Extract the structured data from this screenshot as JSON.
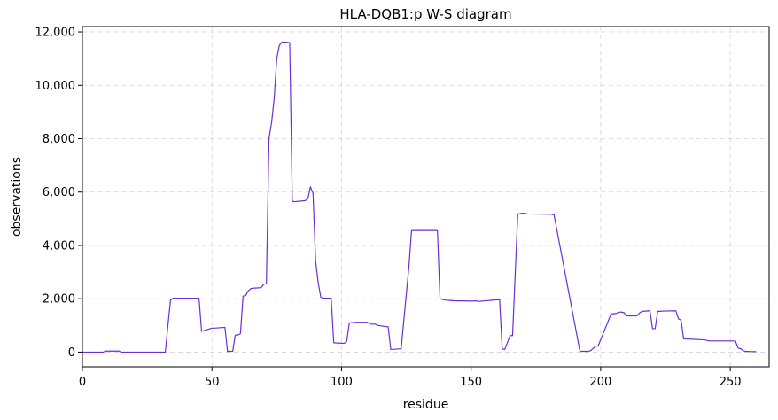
{
  "chart_data": {
    "type": "line",
    "title": "HLA-DQB1:p W-S diagram",
    "xlabel": "residue",
    "ylabel": "observations",
    "xlim": [
      0,
      265
    ],
    "ylim": [
      -550,
      12200
    ],
    "xticks": [
      0,
      50,
      100,
      150,
      200,
      250
    ],
    "yticks": [
      0,
      2000,
      4000,
      6000,
      8000,
      10000,
      12000
    ],
    "xtick_labels": [
      "0",
      "50",
      "100",
      "150",
      "200",
      "250"
    ],
    "ytick_labels": [
      "0",
      "2,000",
      "4,000",
      "6,000",
      "8,000",
      "10,000",
      "12,000"
    ],
    "grid": true,
    "line_color": "#6a2fd6",
    "series": [
      {
        "x": [
          0,
          8,
          9,
          14,
          15,
          32,
          33,
          34,
          35,
          45,
          46,
          50,
          51,
          55,
          56,
          58,
          59,
          60,
          61,
          62,
          63,
          64,
          65,
          66,
          67,
          69,
          70,
          71,
          72,
          73,
          74,
          75,
          76,
          77,
          78,
          80,
          81,
          82,
          86,
          87,
          88,
          89,
          90,
          91,
          92,
          93,
          96,
          97,
          101,
          102,
          103,
          106,
          110,
          111,
          113,
          114,
          117,
          118,
          119,
          122,
          123,
          126,
          127,
          128,
          136,
          137,
          138,
          139,
          140,
          144,
          147,
          150,
          152,
          153,
          160,
          161,
          162,
          163,
          165,
          166,
          168,
          170,
          172,
          181,
          182,
          192,
          194,
          195,
          196,
          198,
          199,
          204,
          206,
          207,
          208,
          209,
          210,
          214,
          215,
          216,
          219,
          220,
          221,
          222,
          223,
          224,
          229,
          230,
          231,
          232,
          240,
          242,
          250,
          251,
          252,
          253,
          254,
          255,
          256,
          258,
          260
        ],
        "y": [
          0,
          0,
          40,
          40,
          0,
          0,
          1000,
          1950,
          2020,
          2020,
          780,
          900,
          900,
          930,
          30,
          30,
          640,
          640,
          700,
          2100,
          2120,
          2300,
          2380,
          2400,
          2400,
          2420,
          2550,
          2560,
          8000,
          8600,
          9500,
          11000,
          11500,
          11620,
          11620,
          11600,
          5650,
          5640,
          5680,
          5750,
          6200,
          5950,
          3400,
          2600,
          2050,
          2020,
          2020,
          350,
          330,
          400,
          1100,
          1120,
          1120,
          1050,
          1050,
          1000,
          960,
          950,
          100,
          120,
          130,
          3200,
          4550,
          4560,
          4560,
          4550,
          2000,
          1970,
          1950,
          1920,
          1920,
          1910,
          1920,
          1900,
          1960,
          1960,
          120,
          100,
          620,
          620,
          5180,
          5210,
          5180,
          5170,
          5140,
          30,
          30,
          30,
          50,
          220,
          230,
          1430,
          1450,
          1500,
          1500,
          1480,
          1360,
          1360,
          1470,
          1530,
          1550,
          880,
          880,
          1530,
          1530,
          1540,
          1550,
          1250,
          1200,
          500,
          460,
          420,
          420,
          420,
          420,
          150,
          130,
          50,
          30,
          20,
          20
        ]
      }
    ]
  }
}
